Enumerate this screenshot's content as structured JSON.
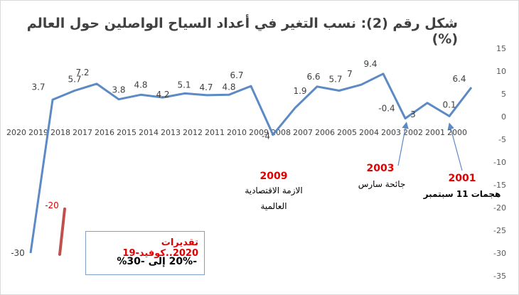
{
  "title": "شكل رقم (2): نسب التغير في أعداد السياح الواصلين حول العالم (%)",
  "colors": {
    "line": "#5b8ac4",
    "covid_bar": "#c0504d",
    "annotation_red": "#e00000",
    "arrow": "#5b8ac4"
  },
  "annotations": {
    "a2009_year": "2009",
    "a2009_text1": "الازمة الاقتصادية",
    "a2009_text2": "العالمية",
    "a2003_year": "2003",
    "a2003_text": "جائحة سارس",
    "a2001_year": "2001",
    "a2001_text": "هجمات 11 سبتمبر",
    "covid_bar_label": "20-",
    "box_line1": "تقديرات 2020..كوفيد-19",
    "box_line2": "-20% إلى -30%"
  },
  "chart_data": {
    "type": "line",
    "x": [
      "2020",
      "2019",
      "2018",
      "2017",
      "2016",
      "2015",
      "2014",
      "2013",
      "2012",
      "2011",
      "2010",
      "2009",
      "2008",
      "2007",
      "2006",
      "2005",
      "2004",
      "2003",
      "2002",
      "2001",
      "2000"
    ],
    "values": [
      -30,
      3.7,
      5.7,
      7.2,
      3.8,
      4.8,
      4.2,
      5.1,
      4.7,
      4.8,
      6.7,
      -4,
      1.9,
      6.6,
      5.7,
      7,
      9.4,
      -0.4,
      3,
      0.1,
      6.4
    ],
    "labels": [
      "-30",
      "3.7",
      "5.7",
      "7.2",
      "3.8",
      "4.8",
      "4.2",
      "5.1",
      "4.7",
      "4.8",
      "6.7",
      "-4",
      "1.9",
      "6.6",
      "5.7",
      "7",
      "9.4",
      "-0.4",
      "3",
      "0.1",
      "6.4"
    ],
    "ylim": [
      -35,
      15
    ],
    "yticks": [
      "15",
      "10",
      "5",
      "0",
      "-5",
      "-10",
      "-15",
      "-20",
      "-25",
      "-30",
      "-35"
    ],
    "grid": false,
    "axis_position": "right"
  }
}
